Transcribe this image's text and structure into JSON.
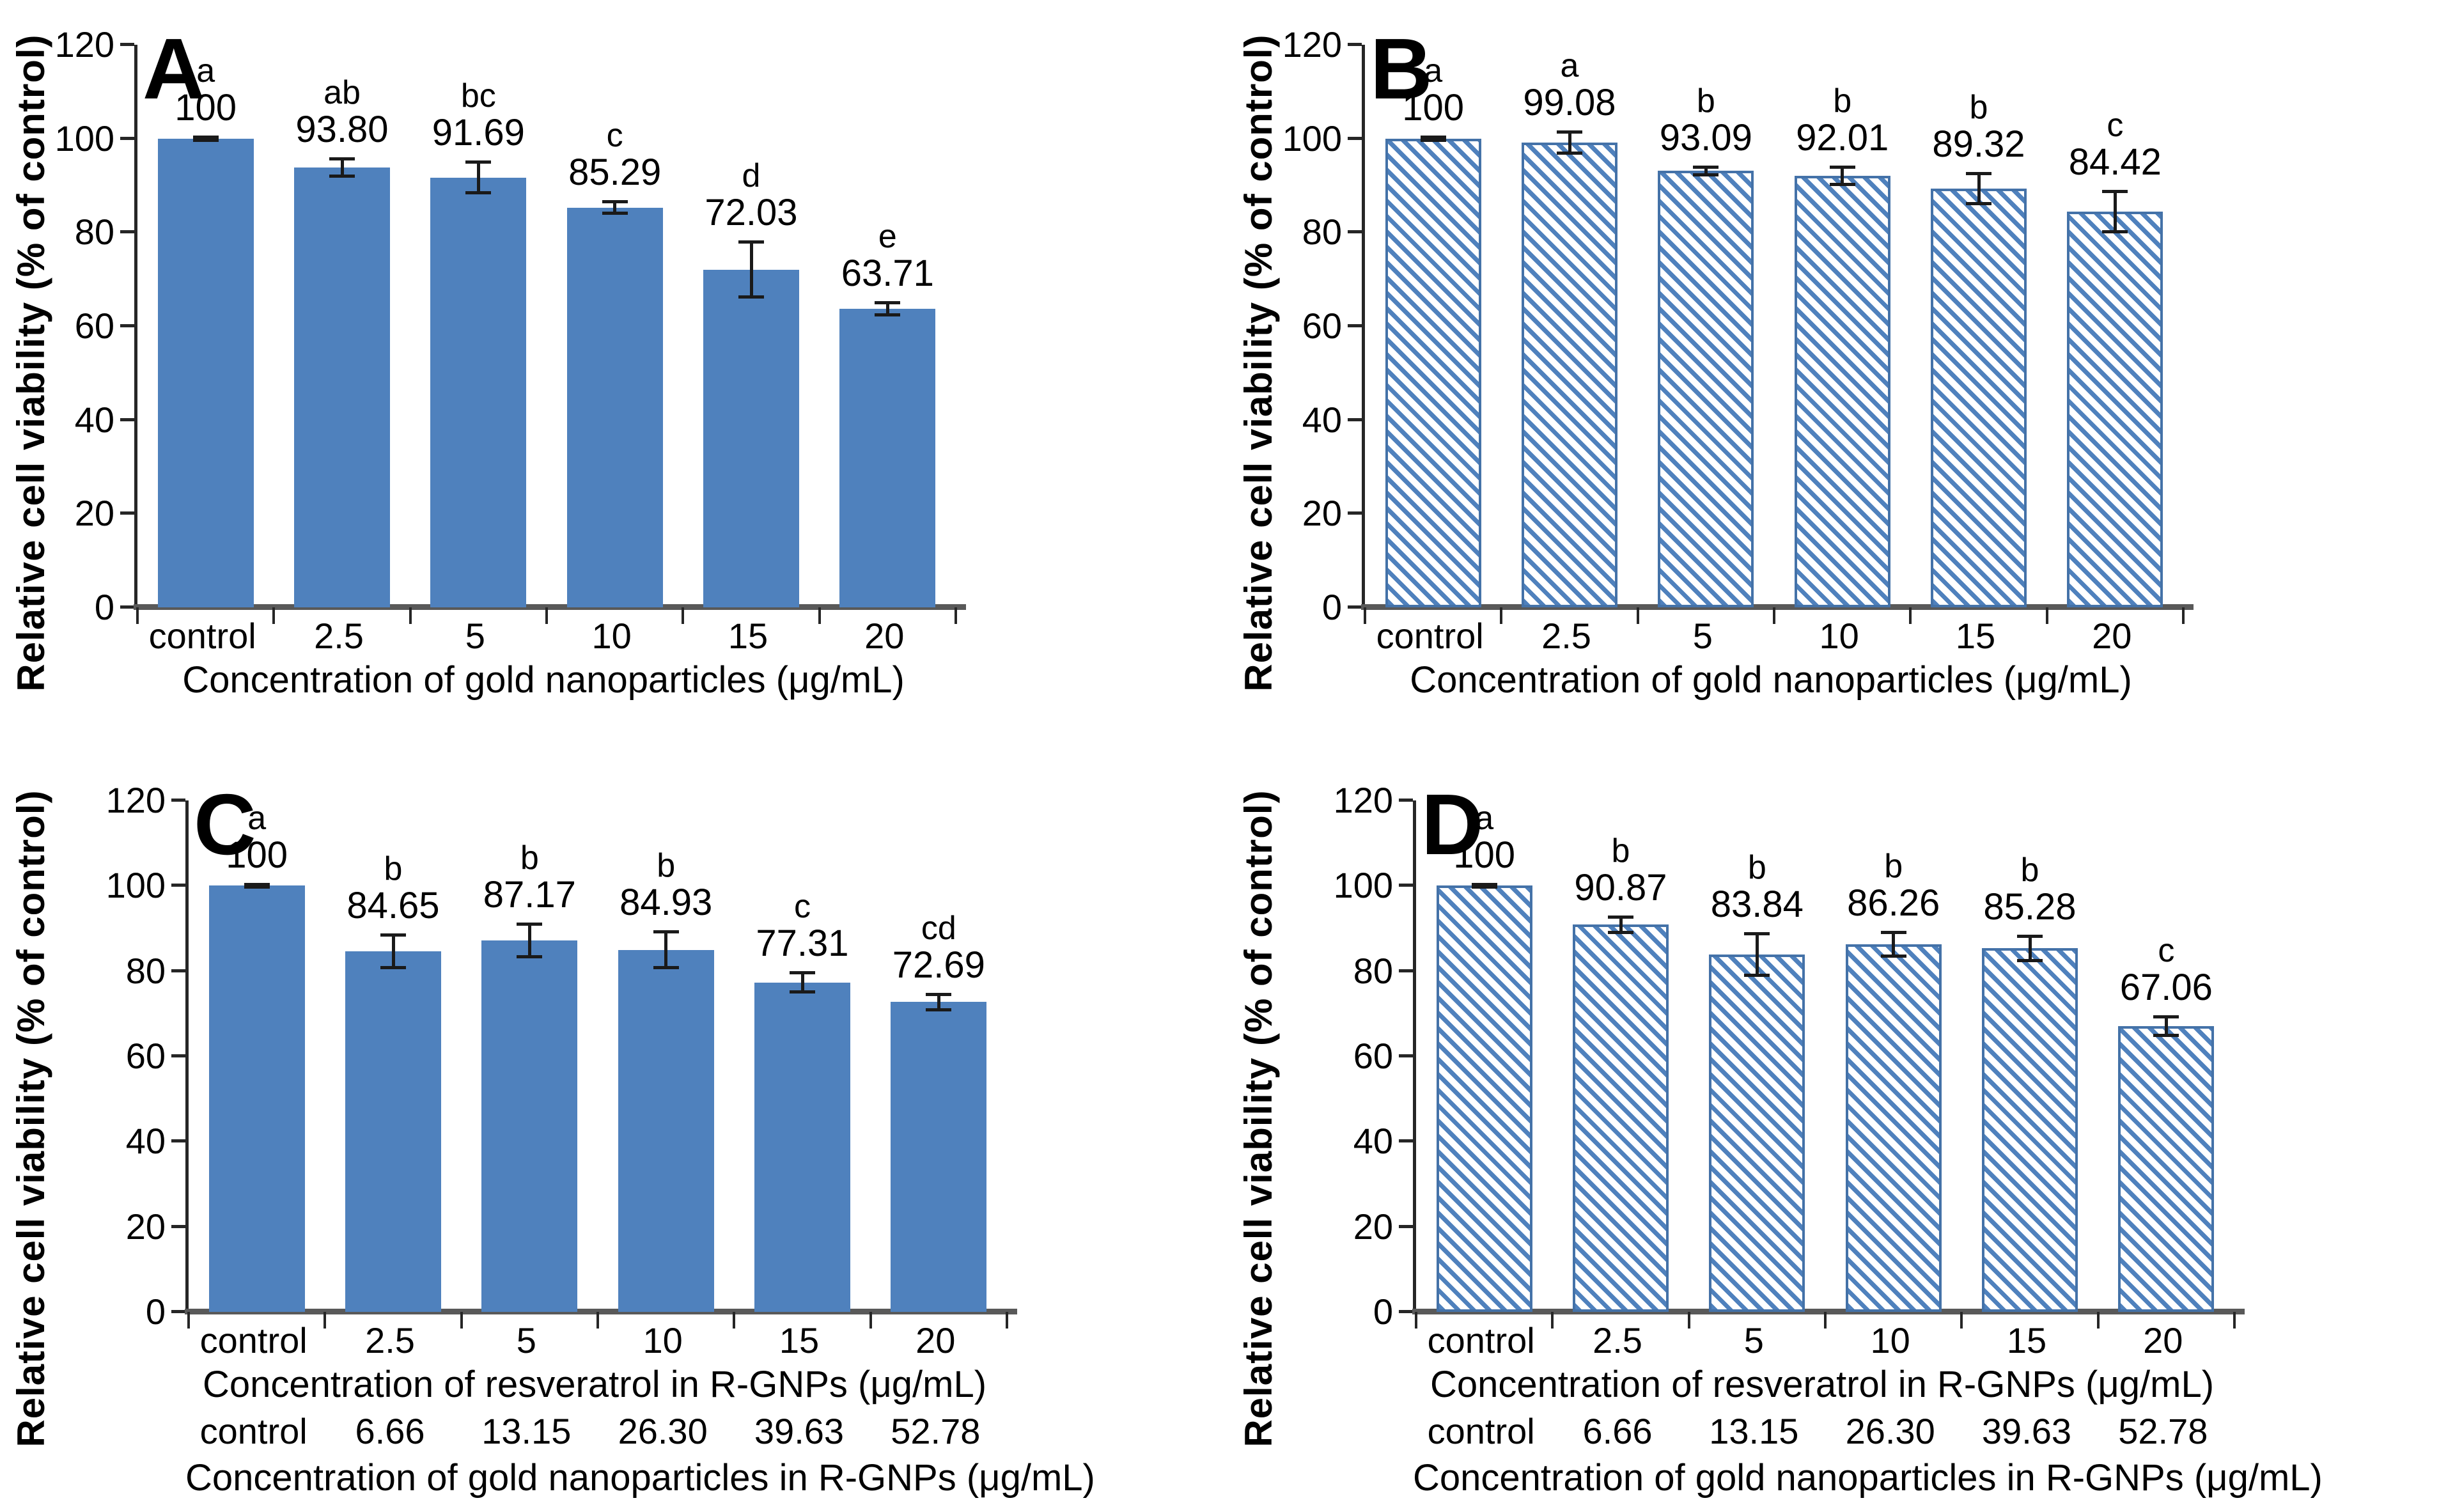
{
  "y_axis": {
    "label": "Relative cell viability (% of control)",
    "ticks": [
      0,
      20,
      40,
      60,
      80,
      100,
      120
    ],
    "max": 120,
    "grid": false
  },
  "colors": {
    "bar_fill": "#4F81BD",
    "bar_border": "#4472A8",
    "axis_line": "#262626",
    "baseline": "#595959",
    "error_bar": "#1A1A1A",
    "text": "#000000"
  },
  "chart_data": [
    {
      "type": "bar",
      "panel": "A",
      "bar_style": "solid",
      "categories": [
        "control",
        "2.5",
        "5",
        "10",
        "15",
        "20"
      ],
      "values": [
        100,
        93.8,
        91.69,
        85.29,
        72.03,
        63.71
      ],
      "value_labels": [
        "100",
        "93.80",
        "91.69",
        "85.29",
        "72.03",
        "63.71"
      ],
      "sig_letters": [
        "a",
        "ab",
        "bc",
        "c",
        "d",
        "e"
      ],
      "errors": [
        0.7,
        2.2,
        3.6,
        1.6,
        6.2,
        1.6
      ],
      "xlabel": "Concentration of gold nanoparticles (μg/mL)",
      "ylabel": "Relative cell viability (% of control)",
      "ylim": [
        0,
        120
      ],
      "legend": "none"
    },
    {
      "type": "bar",
      "panel": "B",
      "bar_style": "hatched",
      "categories": [
        "control",
        "2.5",
        "5",
        "10",
        "15",
        "20"
      ],
      "values": [
        100,
        99.08,
        93.09,
        92.01,
        89.32,
        84.42
      ],
      "value_labels": [
        "100",
        "99.08",
        "93.09",
        "92.01",
        "89.32",
        "84.42"
      ],
      "sig_letters": [
        "a",
        "a",
        "b",
        "b",
        "b",
        "c"
      ],
      "errors": [
        0.7,
        2.6,
        1.2,
        2.2,
        3.6,
        4.6
      ],
      "xlabel": "Concentration of gold nanoparticles (μg/mL)",
      "ylabel": "Relative cell viability (% of control)",
      "ylim": [
        0,
        120
      ],
      "legend": "none"
    },
    {
      "type": "bar",
      "panel": "C",
      "bar_style": "solid",
      "categories": [
        "control",
        "2.5",
        "5",
        "10",
        "15",
        "20"
      ],
      "values": [
        100,
        84.65,
        87.17,
        84.93,
        77.31,
        72.69
      ],
      "value_labels": [
        "100",
        "84.65",
        "87.17",
        "84.93",
        "77.31",
        "72.69"
      ],
      "sig_letters": [
        "a",
        "b",
        "b",
        "b",
        "c",
        "cd"
      ],
      "errors": [
        0.7,
        4.2,
        4.2,
        4.6,
        2.6,
        2.2
      ],
      "xlabel": "Concentration of resveratrol in R-GNPs (μg/mL)",
      "categories2": [
        "control",
        "6.66",
        "13.15",
        "26.30",
        "39.63",
        "52.78"
      ],
      "xlabel2": "Concentration of gold nanoparticles in R-GNPs (μg/mL)",
      "ylabel": "Relative cell viability (% of control)",
      "ylim": [
        0,
        120
      ],
      "legend": "none"
    },
    {
      "type": "bar",
      "panel": "D",
      "bar_style": "hatched",
      "categories": [
        "control",
        "2.5",
        "5",
        "10",
        "15",
        "20"
      ],
      "values": [
        100,
        90.87,
        83.84,
        86.26,
        85.28,
        67.06
      ],
      "value_labels": [
        "100",
        "90.87",
        "83.84",
        "86.26",
        "85.28",
        "67.06"
      ],
      "sig_letters": [
        "a",
        "b",
        "b",
        "b",
        "b",
        "c"
      ],
      "errors": [
        0.7,
        2.2,
        5.2,
        3.2,
        3.2,
        2.6
      ],
      "xlabel": "Concentration of resveratrol in R-GNPs (μg/mL)",
      "categories2": [
        "control",
        "6.66",
        "13.15",
        "26.30",
        "39.63",
        "52.78"
      ],
      "xlabel2": "Concentration of gold nanoparticles in R-GNPs (μg/mL)",
      "ylabel": "Relative cell viability (% of control)",
      "ylim": [
        0,
        120
      ],
      "legend": "none"
    }
  ]
}
